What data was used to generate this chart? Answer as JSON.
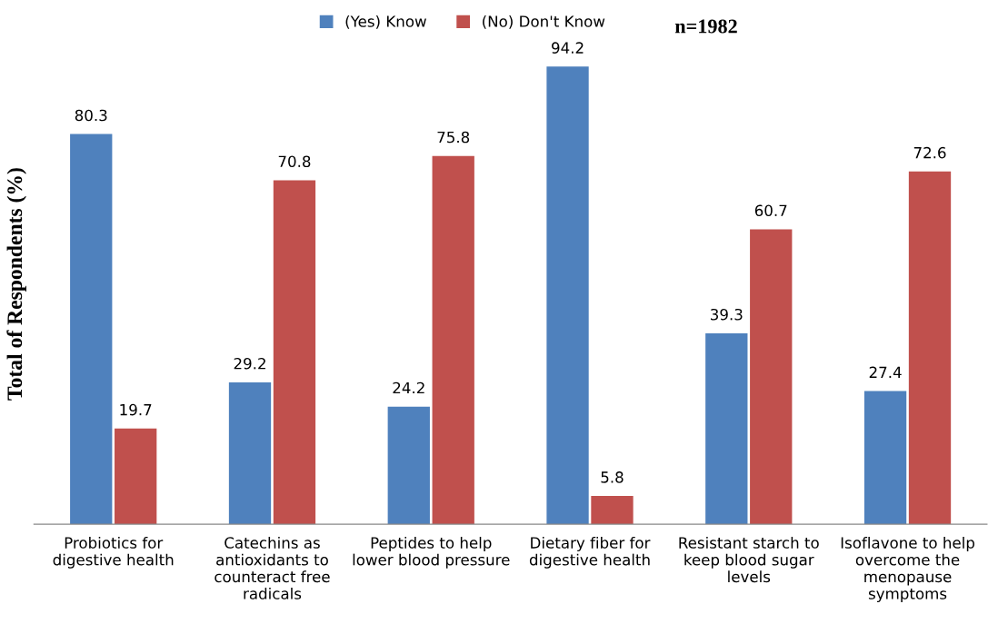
{
  "chart_data": {
    "type": "bar",
    "ylabel": "Total of Respondents (%)",
    "categories": [
      "Probiotics for\ndigestive health",
      "Catechins as\nantioxidants to\ncounteract free\nradicals",
      "Peptides to help\nlower blood pressure",
      "Dietary fiber for\ndigestive health",
      "Resistant starch to\nkeep blood sugar\nlevels",
      "Isoflavone to help\novercome the\nmenopause\nsymptoms"
    ],
    "series": [
      {
        "name": "(Yes) Know",
        "color": "#4f81bd",
        "values": [
          80.3,
          29.2,
          24.2,
          94.2,
          39.3,
          27.4
        ]
      },
      {
        "name": "(No) Don't Know",
        "color": "#c0504d",
        "values": [
          19.7,
          70.8,
          75.8,
          5.8,
          60.7,
          72.6
        ]
      }
    ],
    "annotations": [
      "n=1982"
    ],
    "data_labels": true,
    "legend": "top",
    "grid": false,
    "tick_labels": "x"
  }
}
